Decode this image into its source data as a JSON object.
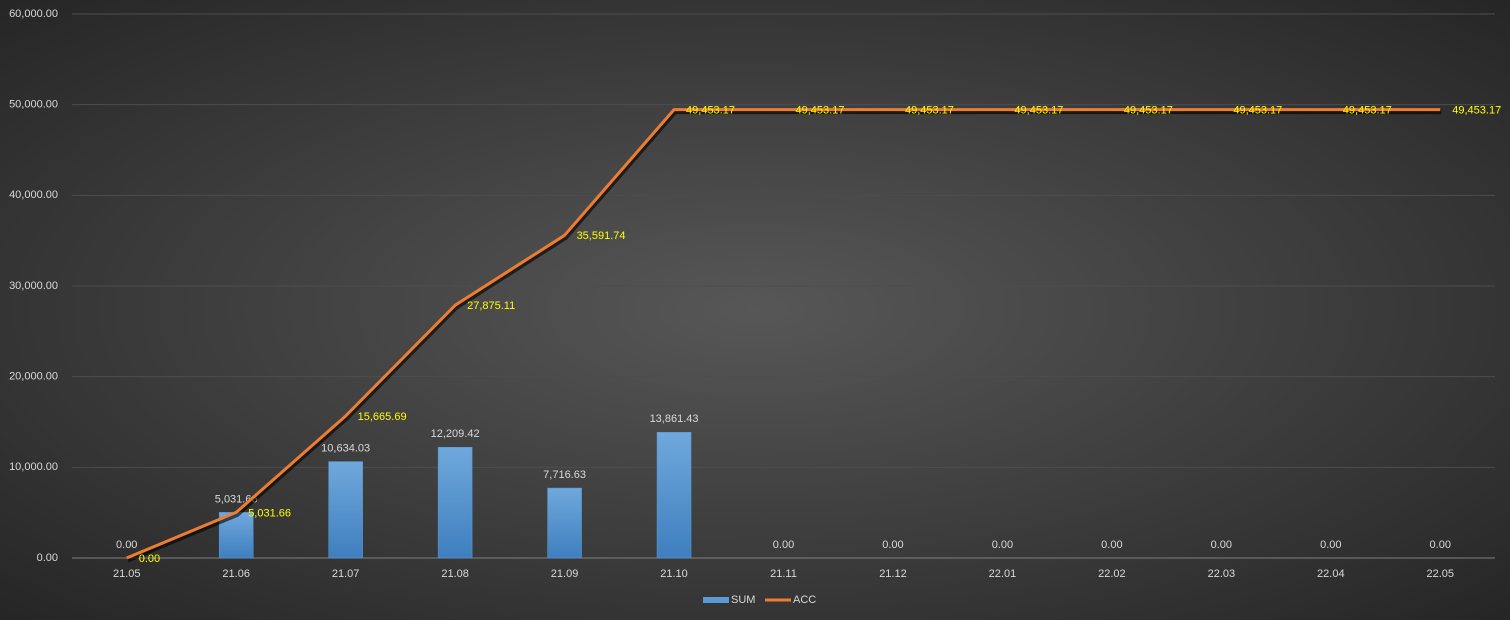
{
  "chart_data": {
    "type": "combo",
    "categories": [
      "21.05",
      "21.06",
      "21.07",
      "21.08",
      "21.09",
      "21.10",
      "21.11",
      "21.12",
      "22.01",
      "22.02",
      "22.03",
      "22.04",
      "22.05"
    ],
    "series": [
      {
        "name": "SUM",
        "type": "bar",
        "color": "#5b9bd5",
        "values": [
          0,
          5031.66,
          10634.03,
          12209.42,
          7716.63,
          13861.43,
          0,
          0,
          0,
          0,
          0,
          0,
          0
        ],
        "value_labels": [
          "0.00",
          "5,031.66",
          "10,634.03",
          "12,209.42",
          "7,716.63",
          "13,861.43",
          "0.00",
          "0.00",
          "0.00",
          "0.00",
          "0.00",
          "0.00",
          "0.00"
        ],
        "label_color": "#d9d9d9"
      },
      {
        "name": "ACC",
        "type": "line",
        "color": "#ed7d31",
        "values": [
          0,
          5031.66,
          15665.69,
          27875.11,
          35591.74,
          49453.17,
          49453.17,
          49453.17,
          49453.17,
          49453.17,
          49453.17,
          49453.17,
          49453.17
        ],
        "value_labels": [
          "0.00",
          "5,031.66",
          "15,665.69",
          "27,875.11",
          "35,591.74",
          "49,453.17",
          "49,453.17",
          "49,453.17",
          "49,453.17",
          "49,453.17",
          "49,453.17",
          "49,453.17",
          "49,453.17"
        ],
        "label_color": "#ffff00"
      }
    ],
    "ylim": [
      0,
      60000
    ],
    "yticks": [
      {
        "value": 0,
        "label": "0.00"
      },
      {
        "value": 10000,
        "label": "10,000.00"
      },
      {
        "value": 20000,
        "label": "20,000.00"
      },
      {
        "value": 30000,
        "label": "30,000.00"
      },
      {
        "value": 40000,
        "label": "40,000.00"
      },
      {
        "value": 50000,
        "label": "50,000.00"
      },
      {
        "value": 60000,
        "label": "60,000.00"
      }
    ],
    "grid": true,
    "legend": "bottom"
  }
}
